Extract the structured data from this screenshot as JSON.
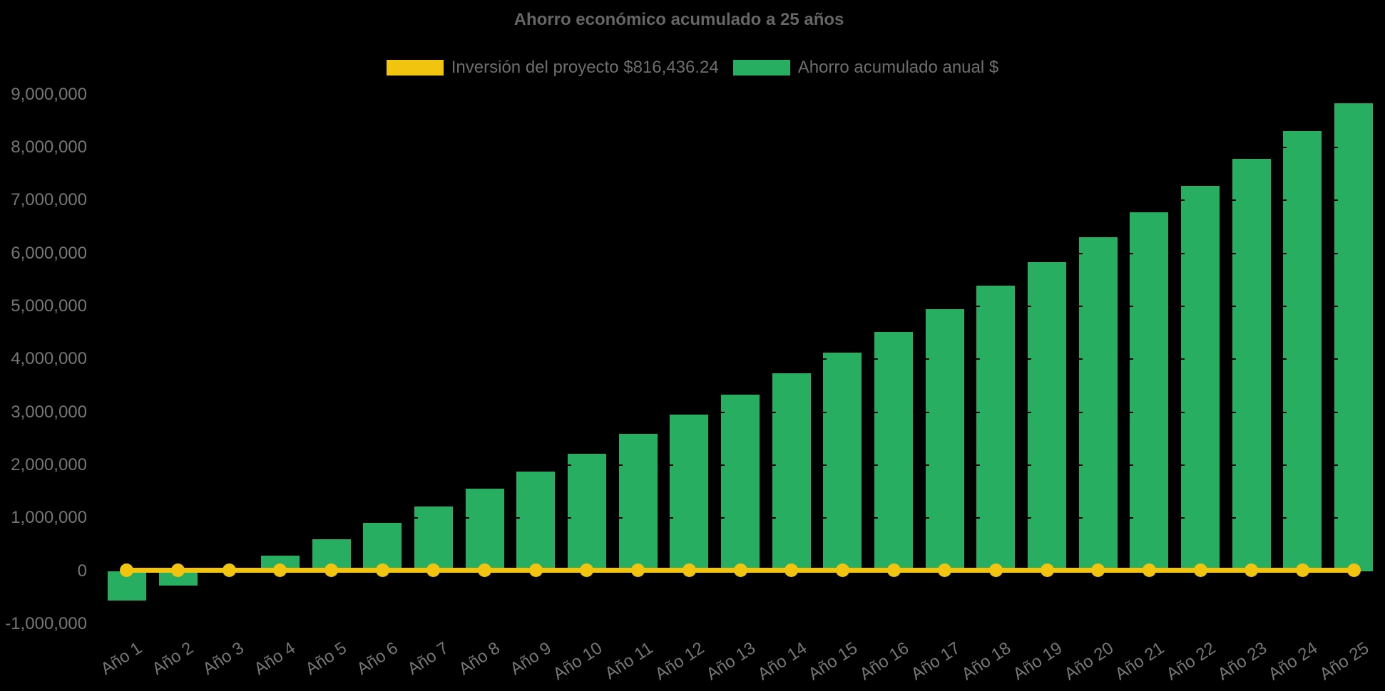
{
  "page": {
    "background": "#000000"
  },
  "chart": {
    "title": "Ahorro económico acumulado a 25 años",
    "legend": [
      {
        "label": "Inversión del proyecto $816,436.24",
        "color": "#F1C40F",
        "series": "investment-line"
      },
      {
        "label": "Ahorro acumulado anual $",
        "color": "#27AE60",
        "series": "savings-bars"
      }
    ]
  },
  "chart_data": {
    "type": "bar",
    "title": "Ahorro económico acumulado a 25 años",
    "categories": [
      "Año 1",
      "Año 2",
      "Año 3",
      "Año 4",
      "Año 5",
      "Año 6",
      "Año 7",
      "Año 8",
      "Año 9",
      "Año 10",
      "Año 11",
      "Año 12",
      "Año 13",
      "Año 14",
      "Año 15",
      "Año 16",
      "Año 17",
      "Año 18",
      "Año 19",
      "Año 20",
      "Año 21",
      "Año 22",
      "Año 23",
      "Año 24",
      "Año 25"
    ],
    "series": [
      {
        "name": "Ahorro acumulado anual $",
        "type": "bar",
        "color": "#27AE60",
        "values": [
          -560000,
          -280000,
          0,
          290000,
          600000,
          910000,
          1220000,
          1560000,
          1880000,
          2220000,
          2590000,
          2960000,
          3330000,
          3730000,
          4120000,
          4520000,
          4940000,
          5390000,
          5840000,
          6300000,
          6780000,
          7270000,
          7790000,
          8310000,
          8830000
        ]
      },
      {
        "name": "Inversión del proyecto $816,436.24",
        "type": "line",
        "color": "#F1C40F",
        "point_markers": true,
        "values": [
          0,
          0,
          0,
          0,
          0,
          0,
          0,
          0,
          0,
          0,
          0,
          0,
          0,
          0,
          0,
          0,
          0,
          0,
          0,
          0,
          0,
          0,
          0,
          0,
          0
        ],
        "note": "flat yellow line with round point markers drawn at y≈0 across all 25 categories"
      }
    ],
    "investment_stated": 816436.24,
    "xlabel": "",
    "ylabel": "",
    "ylim": [
      -1000000,
      9000000
    ],
    "ytick_interval": 1000000,
    "yticks": {
      "values": [
        9000000,
        8000000,
        7000000,
        6000000,
        5000000,
        4000000,
        3000000,
        2000000,
        1000000,
        0,
        -1000000
      ],
      "labels": [
        "9,000,000",
        "8,000,000",
        "7,000,000",
        "6,000,000",
        "5,000,000",
        "4,000,000",
        "3,000,000",
        "2,000,000",
        "1,000,000",
        "0",
        "-1,000,000"
      ]
    },
    "x_label_rotation_deg": -33,
    "legend_position": "top",
    "grid": "horizontal black gridlines every 1,000,000 (visible only as tiny notches where they cross bars)",
    "background": "#000000",
    "title_color": "#666666",
    "axis_text_color": "#767676",
    "legend_text_color": "#6e6e6e"
  }
}
